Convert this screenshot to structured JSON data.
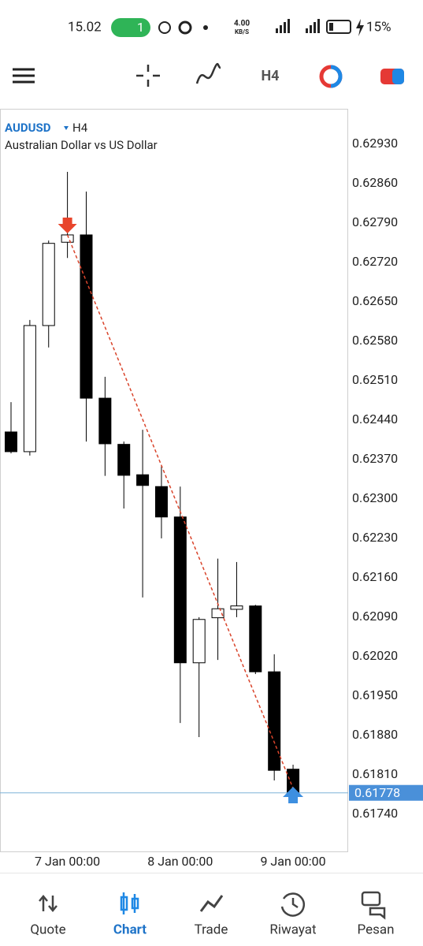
{
  "status_bar": {
    "time": "15.02",
    "hotspot_count": "1",
    "speed": "4.00",
    "speed_unit": "KB/S",
    "battery": "15%"
  },
  "toolbar": {
    "timeframe": "H4"
  },
  "chart_data": {
    "type": "candlestick",
    "title": "AUDUSD",
    "timeframe": "H4",
    "subtitle": "Australian Dollar vs US Dollar",
    "categories": [
      null,
      null,
      null,
      "7 Jan 00:00",
      null,
      null,
      null,
      null,
      null,
      "8 Jan 00:00",
      null,
      null,
      null,
      null,
      null,
      "9 Jan 00:00"
    ],
    "open": [
      0.62419,
      0.62384,
      0.62608,
      0.62756,
      0.62769,
      0.62479,
      0.62397,
      0.62343,
      0.62322,
      0.62268,
      0.62009,
      0.62089,
      0.62104,
      0.6211,
      0.61993,
      0.6182
    ],
    "high": [
      0.62472,
      0.62618,
      0.62759,
      0.62881,
      0.62846,
      0.62517,
      0.62402,
      0.62423,
      0.6236,
      0.62322,
      0.6209,
      0.62194,
      0.62188,
      0.62112,
      0.62024,
      0.61828
    ],
    "low": [
      0.62381,
      0.62377,
      0.62569,
      0.62728,
      0.62402,
      0.62341,
      0.62283,
      0.62125,
      0.6223,
      0.61902,
      0.61877,
      0.62014,
      0.6209,
      0.61989,
      0.618,
      0.61778
    ],
    "close": [
      0.62384,
      0.62608,
      0.62754,
      0.62769,
      0.62479,
      0.62398,
      0.62342,
      0.62324,
      0.62268,
      0.62009,
      0.62086,
      0.62105,
      0.6211,
      0.61993,
      0.61818,
      0.61778
    ],
    "up_color": "#ffffff",
    "down_color": "#000000",
    "ylim": [
      0.61674,
      0.62993
    ],
    "yticks": [
      {
        "value": 0.6293,
        "label": "0.62930"
      },
      {
        "value": 0.6286,
        "label": "0.62860"
      },
      {
        "value": 0.6279,
        "label": "0.62790"
      },
      {
        "value": 0.6272,
        "label": "0.62720"
      },
      {
        "value": 0.6265,
        "label": "0.62650"
      },
      {
        "value": 0.6258,
        "label": "0.62580"
      },
      {
        "value": 0.6251,
        "label": "0.62510"
      },
      {
        "value": 0.6244,
        "label": "0.62440"
      },
      {
        "value": 0.6237,
        "label": "0.62370"
      },
      {
        "value": 0.623,
        "label": "0.62300"
      },
      {
        "value": 0.6223,
        "label": "0.62230"
      },
      {
        "value": 0.6216,
        "label": "0.62160"
      },
      {
        "value": 0.6209,
        "label": "0.62090"
      },
      {
        "value": 0.6202,
        "label": "0.62020"
      },
      {
        "value": 0.6195,
        "label": "0.61950"
      },
      {
        "value": 0.6188,
        "label": "0.61880"
      },
      {
        "value": 0.6181,
        "label": "0.61810"
      },
      {
        "value": 0.6174,
        "label": "0.61740"
      }
    ],
    "current_price": {
      "value": 0.61778,
      "label": "0.61778"
    },
    "trendline": {
      "start_index": 3,
      "start_value": 0.62769,
      "end_index": 15,
      "end_value": 0.61786,
      "color": "#d9442b"
    }
  },
  "nav": [
    {
      "label": "Quote"
    },
    {
      "label": "Chart"
    },
    {
      "label": "Trade"
    },
    {
      "label": "Riwayat"
    },
    {
      "label": "Pesan"
    }
  ]
}
